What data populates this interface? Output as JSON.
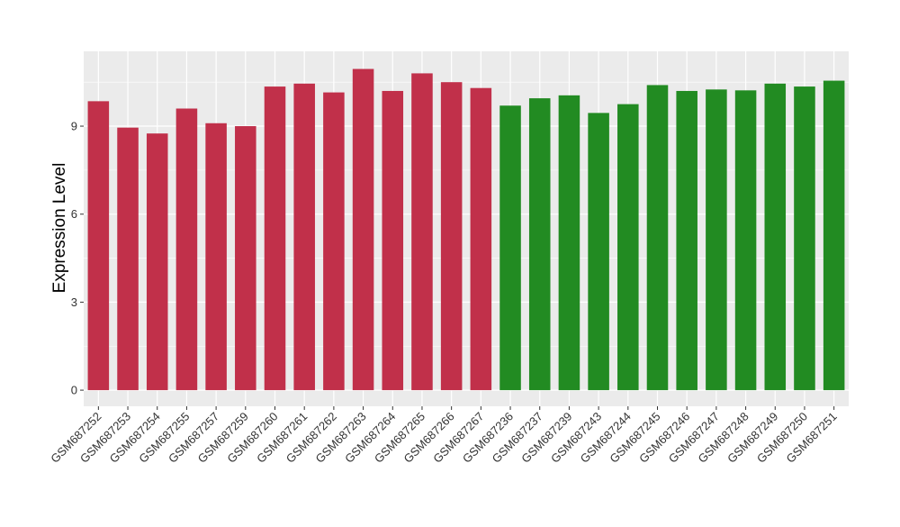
{
  "chart_data": {
    "type": "bar",
    "title": "",
    "xlabel": "",
    "ylabel": "Expression Level",
    "ylim": [
      -0.55,
      11.55
    ],
    "yticks": [
      0,
      3,
      6,
      9
    ],
    "grid": true,
    "legend": "none",
    "categories": [
      "GSM687252",
      "GSM687253",
      "GSM687254",
      "GSM687255",
      "GSM687257",
      "GSM687259",
      "GSM687260",
      "GSM687261",
      "GSM687262",
      "GSM687263",
      "GSM687264",
      "GSM687265",
      "GSM687266",
      "GSM687267",
      "GSM687236",
      "GSM687237",
      "GSM687239",
      "GSM687243",
      "GSM687244",
      "GSM687245",
      "GSM687246",
      "GSM687247",
      "GSM687248",
      "GSM687249",
      "GSM687250",
      "GSM687251"
    ],
    "values": [
      9.85,
      8.95,
      8.75,
      9.6,
      9.1,
      9.0,
      10.35,
      10.45,
      10.15,
      10.95,
      10.2,
      10.8,
      10.5,
      10.3,
      9.7,
      9.95,
      10.05,
      9.45,
      9.75,
      10.4,
      10.2,
      10.25,
      10.22,
      10.45,
      10.35,
      10.55
    ],
    "bar_colors": [
      "#C1304A",
      "#C1304A",
      "#C1304A",
      "#C1304A",
      "#C1304A",
      "#C1304A",
      "#C1304A",
      "#C1304A",
      "#C1304A",
      "#C1304A",
      "#C1304A",
      "#C1304A",
      "#C1304A",
      "#C1304A",
      "#228B22",
      "#228B22",
      "#228B22",
      "#228B22",
      "#228B22",
      "#228B22",
      "#228B22",
      "#228B22",
      "#228B22",
      "#228B22",
      "#228B22",
      "#228B22"
    ],
    "panel_background": "#EBEBEB",
    "grid_color": "#FFFFFF"
  }
}
